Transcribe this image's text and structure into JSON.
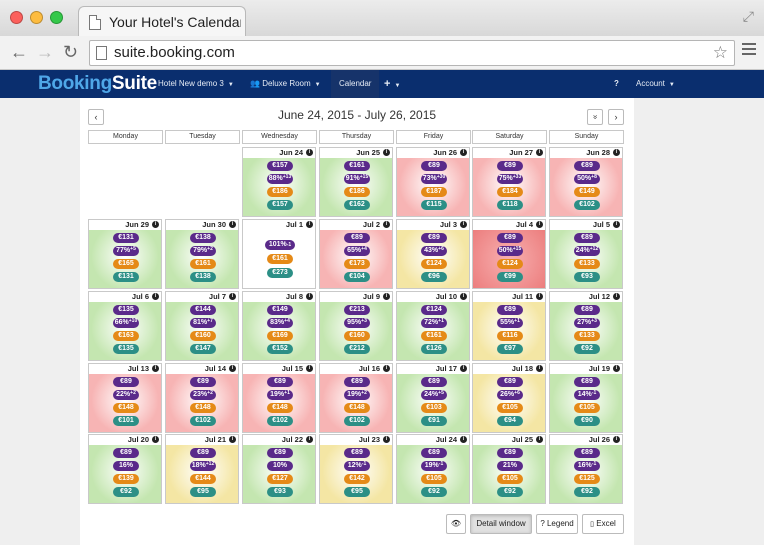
{
  "browser": {
    "tab_title": "Your Hotel's Calendar",
    "url": "suite.booking.com"
  },
  "navbar": {
    "brand_part1": "Booking",
    "brand_part2": "Suite",
    "hotel": "Hotel New demo 3",
    "room": "Deluxe Room",
    "calendar": "Calendar",
    "plus": "+",
    "help": "?",
    "account": "Account"
  },
  "calendar": {
    "range": "June 24, 2015 - July 26, 2015",
    "prev": "‹",
    "next": "›",
    "collapse": "»",
    "weekdays": [
      "Monday",
      "Tuesday",
      "Wednesday",
      "Thursday",
      "Friday",
      "Saturday",
      "Sunday"
    ],
    "status_colors": {
      "green": "#c4e6b0",
      "red": "#f7b4b4",
      "yellow": "#f4e6a4",
      "white": "#ffffff",
      "deepred": "#f08c8c"
    },
    "weeks": [
      [
        null,
        null,
        {
          "date": "Jun 24",
          "status": "green",
          "price": "€157",
          "occ": "88%",
          "delta": "+13",
          "comp": "€186",
          "rec": "€157"
        },
        {
          "date": "Jun 25",
          "status": "green",
          "price": "€161",
          "occ": "91%",
          "delta": "+15",
          "comp": "€186",
          "rec": "€162"
        },
        {
          "date": "Jun 26",
          "status": "red",
          "price": "€89",
          "occ": "73%",
          "delta": "+30",
          "comp": "€187",
          "rec": "€115"
        },
        {
          "date": "Jun 27",
          "status": "red",
          "price": "€89",
          "occ": "75%",
          "delta": "+33",
          "comp": "€184",
          "rec": "€118"
        },
        {
          "date": "Jun 28",
          "status": "red",
          "price": "€89",
          "occ": "50%",
          "delta": "+8",
          "comp": "€149",
          "rec": "€102"
        }
      ],
      [
        {
          "date": "Jun 29",
          "status": "green",
          "price": "€131",
          "occ": "77%",
          "delta": "+5",
          "comp": "€165",
          "rec": "€131"
        },
        {
          "date": "Jun 30",
          "status": "green",
          "price": "€138",
          "occ": "79%",
          "delta": "+2",
          "comp": "€161",
          "rec": "€138"
        },
        {
          "date": "Jul 1",
          "status": "white",
          "price": "",
          "occ": "101%",
          "delta": "-1",
          "comp": "€161",
          "rec": "€273"
        },
        {
          "date": "Jul 2",
          "status": "red",
          "price": "€89",
          "occ": "65%",
          "delta": "+4",
          "comp": "€173",
          "rec": "€104"
        },
        {
          "date": "Jul 3",
          "status": "yellow",
          "price": "€89",
          "occ": "43%",
          "delta": "+6",
          "comp": "€124",
          "rec": "€96"
        },
        {
          "date": "Jul 4",
          "status": "deepred",
          "price": "€89",
          "occ": "50%",
          "delta": "+15",
          "comp": "€124",
          "rec": "€99"
        },
        {
          "date": "Jul 5",
          "status": "green",
          "price": "€89",
          "occ": "24%",
          "delta": "+12",
          "comp": "€133",
          "rec": "€93"
        }
      ],
      [
        {
          "date": "Jul 6",
          "status": "green",
          "price": "€135",
          "occ": "66%",
          "delta": "+10",
          "comp": "€163",
          "rec": "€135"
        },
        {
          "date": "Jul 7",
          "status": "green",
          "price": "€144",
          "occ": "81%",
          "delta": "+7",
          "comp": "€160",
          "rec": "€147"
        },
        {
          "date": "Jul 8",
          "status": "green",
          "price": "€149",
          "occ": "83%",
          "delta": "+4",
          "comp": "€169",
          "rec": "€152"
        },
        {
          "date": "Jul 9",
          "status": "green",
          "price": "€213",
          "occ": "95%",
          "delta": "+3",
          "comp": "€160",
          "rec": "€212"
        },
        {
          "date": "Jul 10",
          "status": "green",
          "price": "€124",
          "occ": "72%",
          "delta": "+1",
          "comp": "€161",
          "rec": "€126"
        },
        {
          "date": "Jul 11",
          "status": "yellow",
          "price": "€89",
          "occ": "55%",
          "delta": "+1",
          "comp": "€116",
          "rec": "€97"
        },
        {
          "date": "Jul 12",
          "status": "green",
          "price": "€89",
          "occ": "27%",
          "delta": "+3",
          "comp": "€133",
          "rec": "€92"
        }
      ],
      [
        {
          "date": "Jul 13",
          "status": "red",
          "price": "€89",
          "occ": "22%",
          "delta": "+2",
          "comp": "€148",
          "rec": "€101"
        },
        {
          "date": "Jul 14",
          "status": "red",
          "price": "€89",
          "occ": "23%",
          "delta": "+2",
          "comp": "€148",
          "rec": "€102"
        },
        {
          "date": "Jul 15",
          "status": "red",
          "price": "€89",
          "occ": "19%",
          "delta": "+1",
          "comp": "€148",
          "rec": "€102"
        },
        {
          "date": "Jul 16",
          "status": "red",
          "price": "€89",
          "occ": "19%",
          "delta": "+2",
          "comp": "€148",
          "rec": "€102"
        },
        {
          "date": "Jul 17",
          "status": "green",
          "price": "€89",
          "occ": "24%",
          "delta": "+5",
          "comp": "€103",
          "rec": "€91"
        },
        {
          "date": "Jul 18",
          "status": "yellow",
          "price": "€89",
          "occ": "26%",
          "delta": "+6",
          "comp": "€105",
          "rec": "€94"
        },
        {
          "date": "Jul 19",
          "status": "green",
          "price": "€89",
          "occ": "14%",
          "delta": "-1",
          "comp": "€105",
          "rec": "€90"
        }
      ],
      [
        {
          "date": "Jul 20",
          "status": "green",
          "price": "€89",
          "occ": "16%",
          "delta": "",
          "comp": "€139",
          "rec": "€92"
        },
        {
          "date": "Jul 21",
          "status": "yellow",
          "price": "€89",
          "occ": "18%",
          "delta": "+12",
          "comp": "€144",
          "rec": "€95"
        },
        {
          "date": "Jul 22",
          "status": "green",
          "price": "€89",
          "occ": "10%",
          "delta": "",
          "comp": "€127",
          "rec": "€93"
        },
        {
          "date": "Jul 23",
          "status": "yellow",
          "price": "€89",
          "occ": "12%",
          "delta": "-1",
          "comp": "€142",
          "rec": "€95"
        },
        {
          "date": "Jul 24",
          "status": "green",
          "price": "€89",
          "occ": "19%",
          "delta": "-1",
          "comp": "€105",
          "rec": "€92"
        },
        {
          "date": "Jul 25",
          "status": "green",
          "price": "€89",
          "occ": "21%",
          "delta": "",
          "comp": "€105",
          "rec": "€92"
        },
        {
          "date": "Jul 26",
          "status": "green",
          "price": "€89",
          "occ": "16%",
          "delta": "-1",
          "comp": "€125",
          "rec": "€92"
        }
      ]
    ]
  },
  "footer": {
    "eye": "👁",
    "detail": "Detail window",
    "legend": "? Legend",
    "excel": "Excel"
  }
}
